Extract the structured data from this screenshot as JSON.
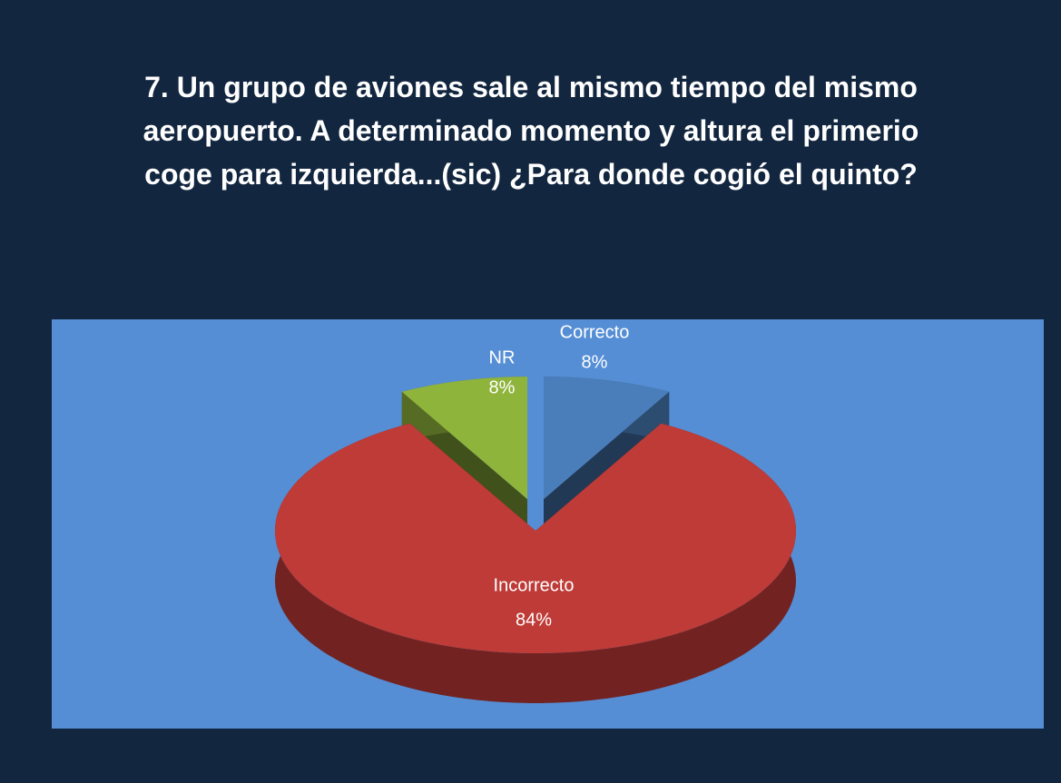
{
  "chart_data": {
    "type": "pie",
    "title": "7. Un grupo de aviones sale al mismo tiempo del mismo aeropuerto. A determinado momento y altura el primerio coge para izquierda...(sic) ¿Para donde cogió el quinto?",
    "categories": [
      "Correcto",
      "Incorrecto",
      "NR"
    ],
    "values": [
      8,
      84,
      8
    ],
    "value_labels": [
      "8%",
      "84%",
      "8%"
    ],
    "colors": [
      "#4a7ebb",
      "#be3b37",
      "#8fb43c"
    ]
  }
}
